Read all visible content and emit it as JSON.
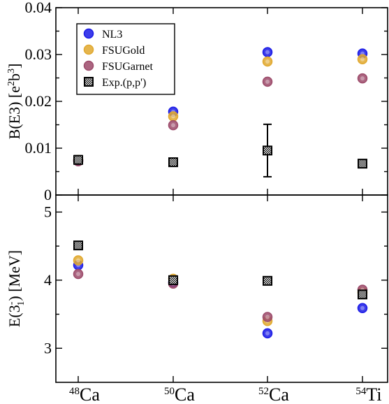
{
  "colors": {
    "NL3": "#1a1ae6",
    "FSUGold": "#e0a82e",
    "FSUGarnet": "#9c4a6a",
    "Exp": "#000000"
  },
  "chart_data": [
    {
      "type": "scatter",
      "panel": "top",
      "ylabel_main": "B(E3) [e",
      "ylabel_sup1": "2",
      "ylabel_mid": "b",
      "ylabel_sup2": "3",
      "ylabel_end": "]",
      "ylim": [
        0,
        0.04
      ],
      "yticks": [
        0,
        0.01,
        0.02,
        0.03,
        0.04
      ],
      "ytick_labels": [
        "0",
        "0.01",
        "0.02",
        "0.03",
        "0.04"
      ],
      "categories": [
        "48Ca",
        "50Ca",
        "52Ca",
        "54Ti"
      ],
      "legend": {
        "placement": "top-left",
        "entries": [
          "NL3",
          "FSUGold",
          "FSUGarnet",
          "Exp.(p,p')"
        ]
      },
      "series": [
        {
          "name": "NL3",
          "marker": "circle",
          "values": [
            0.0074,
            0.0178,
            0.0305,
            0.0302
          ]
        },
        {
          "name": "FSUGold",
          "marker": "circle",
          "values": [
            0.0075,
            0.0168,
            0.0285,
            0.029
          ]
        },
        {
          "name": "FSUGarnet",
          "marker": "circle",
          "values": [
            0.0072,
            0.0149,
            0.0242,
            0.0249
          ]
        },
        {
          "name": "Exp.(p,p')",
          "marker": "square",
          "values": [
            0.0075,
            0.007,
            0.0095,
            0.0067
          ],
          "errors": [
            0.0009,
            0,
            0.0056,
            0
          ]
        }
      ]
    },
    {
      "type": "scatter",
      "panel": "bottom",
      "ylabel_main": "E(3",
      "ylabel_sup": "-",
      "ylabel_sub": "1",
      "ylabel_end": ") [MeV]",
      "ylim": [
        2.5,
        5.25
      ],
      "yticks": [
        3,
        4,
        5
      ],
      "ytick_labels": [
        "3",
        "4",
        "5"
      ],
      "categories": [
        "48Ca",
        "50Ca",
        "52Ca",
        "54Ti"
      ],
      "x_tick_labels": [
        {
          "sup": "48",
          "base": "Ca"
        },
        {
          "sup": "50",
          "base": "Ca"
        },
        {
          "sup": "52",
          "base": "Ca"
        },
        {
          "sup": "54",
          "base": "Ti"
        }
      ],
      "series": [
        {
          "name": "NL3",
          "marker": "circle",
          "values": [
            4.22,
            3.97,
            3.22,
            3.59
          ]
        },
        {
          "name": "FSUGold",
          "marker": "circle",
          "values": [
            4.29,
            4.02,
            3.4,
            3.82
          ]
        },
        {
          "name": "FSUGarnet",
          "marker": "circle",
          "values": [
            4.09,
            3.95,
            3.46,
            3.86
          ]
        },
        {
          "name": "Exp.(p,p')",
          "marker": "square",
          "values": [
            4.51,
            4.0,
            3.99,
            3.79
          ]
        }
      ]
    }
  ]
}
